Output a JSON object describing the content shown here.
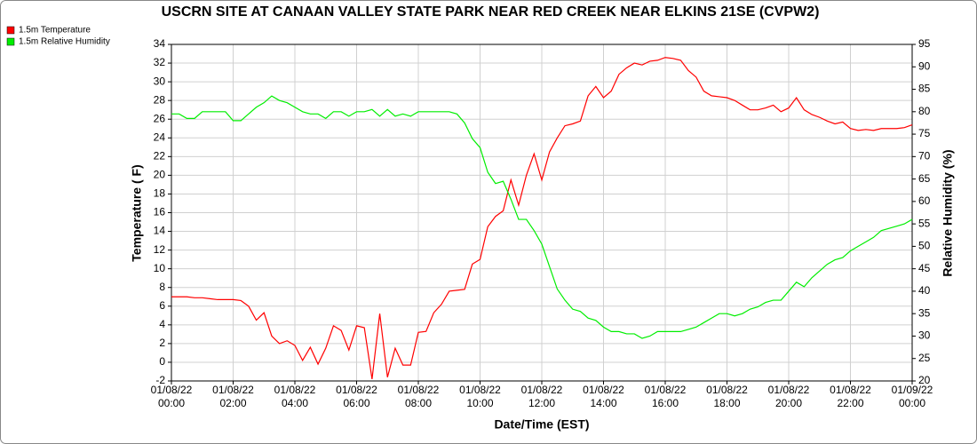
{
  "chart_data": {
    "type": "line",
    "title": "USCRN SITE AT CANAAN VALLEY STATE PARK NEAR RED CREEK NEAR ELKINS 21SE (CVPW2)",
    "x_label": "Date/Time (EST)",
    "y_label": "Temperature ( F)",
    "y2_label": "Relative Humidity (%)",
    "x": [
      "01/08/22 00:00",
      "01/08/22 00:15",
      "01/08/22 00:30",
      "01/08/22 00:45",
      "01/08/22 01:00",
      "01/08/22 01:15",
      "01/08/22 01:30",
      "01/08/22 01:45",
      "01/08/22 02:00",
      "01/08/22 02:15",
      "01/08/22 02:30",
      "01/08/22 02:45",
      "01/08/22 03:00",
      "01/08/22 03:15",
      "01/08/22 03:30",
      "01/08/22 03:45",
      "01/08/22 04:00",
      "01/08/22 04:15",
      "01/08/22 04:30",
      "01/08/22 04:45",
      "01/08/22 05:00",
      "01/08/22 05:15",
      "01/08/22 05:30",
      "01/08/22 05:45",
      "01/08/22 06:00",
      "01/08/22 06:15",
      "01/08/22 06:30",
      "01/08/22 06:45",
      "01/08/22 07:00",
      "01/08/22 07:15",
      "01/08/22 07:30",
      "01/08/22 07:45",
      "01/08/22 08:00",
      "01/08/22 08:15",
      "01/08/22 08:30",
      "01/08/22 08:45",
      "01/08/22 09:00",
      "01/08/22 09:15",
      "01/08/22 09:30",
      "01/08/22 09:45",
      "01/08/22 10:00",
      "01/08/22 10:15",
      "01/08/22 10:30",
      "01/08/22 10:45",
      "01/08/22 11:00",
      "01/08/22 11:15",
      "01/08/22 11:30",
      "01/08/22 11:45",
      "01/08/22 12:00",
      "01/08/22 12:15",
      "01/08/22 12:30",
      "01/08/22 12:45",
      "01/08/22 13:00",
      "01/08/22 13:15",
      "01/08/22 13:30",
      "01/08/22 13:45",
      "01/08/22 14:00",
      "01/08/22 14:15",
      "01/08/22 14:30",
      "01/08/22 14:45",
      "01/08/22 15:00",
      "01/08/22 15:15",
      "01/08/22 15:30",
      "01/08/22 15:45",
      "01/08/22 16:00",
      "01/08/22 16:15",
      "01/08/22 16:30",
      "01/08/22 16:45",
      "01/08/22 17:00",
      "01/08/22 17:15",
      "01/08/22 17:30",
      "01/08/22 17:45",
      "01/08/22 18:00",
      "01/08/22 18:15",
      "01/08/22 18:30",
      "01/08/22 18:45",
      "01/08/22 19:00",
      "01/08/22 19:15",
      "01/08/22 19:30",
      "01/08/22 19:45",
      "01/08/22 20:00",
      "01/08/22 20:15",
      "01/08/22 20:30",
      "01/08/22 20:45",
      "01/08/22 21:00",
      "01/08/22 21:15",
      "01/08/22 21:30",
      "01/08/22 21:45",
      "01/08/22 22:00",
      "01/08/22 22:15",
      "01/08/22 22:30",
      "01/08/22 22:45",
      "01/08/22 23:00",
      "01/08/22 23:15",
      "01/08/22 23:30",
      "01/08/22 23:45",
      "01/09/22 00:00"
    ],
    "series": [
      {
        "name": "1.5m Temperature",
        "color": "#ff0000",
        "values": [
          7.0,
          7.0,
          7.0,
          6.9,
          6.9,
          6.8,
          6.7,
          6.7,
          6.7,
          6.6,
          6.0,
          4.5,
          5.3,
          2.8,
          2.0,
          2.3,
          1.8,
          0.2,
          1.6,
          -0.2,
          1.5,
          3.9,
          3.4,
          1.3,
          3.9,
          3.7,
          -1.8,
          5.2,
          -1.6,
          1.5,
          -0.3,
          -0.3,
          3.2,
          3.3,
          5.3,
          6.2,
          7.6,
          7.7,
          7.8,
          10.5,
          11.0,
          14.5,
          15.6,
          16.2,
          19.5,
          16.8,
          20.0,
          22.3,
          19.5,
          22.5,
          24.0,
          25.3,
          25.5,
          25.8,
          28.5,
          29.5,
          28.3,
          29.0,
          30.8,
          31.5,
          32.0,
          31.8,
          32.2,
          32.3,
          32.6,
          32.5,
          32.3,
          31.2,
          30.5,
          29.0,
          28.5,
          28.4,
          28.3,
          28.0,
          27.5,
          27.0,
          27.0,
          27.2,
          27.5,
          26.8,
          27.2,
          28.3,
          27.0,
          26.5,
          26.2,
          25.8,
          25.5,
          25.7,
          25.0,
          24.8,
          24.9,
          24.8,
          25.0,
          25.0,
          25.0,
          25.1,
          25.4
        ]
      },
      {
        "name": "1.5m Relative Humidity",
        "color": "#00ee00",
        "axis": "y2",
        "values": [
          79.5,
          79.5,
          78.5,
          78.5,
          80,
          80,
          80,
          80,
          78,
          78,
          79.5,
          81,
          82,
          83.5,
          82.5,
          82,
          81,
          80,
          79.5,
          79.5,
          78.5,
          80,
          80,
          79,
          80,
          80,
          80.5,
          79,
          80.5,
          79,
          79.5,
          79,
          80,
          80,
          80,
          80,
          80,
          79.5,
          77.5,
          74,
          72,
          66.5,
          64,
          64.5,
          60.5,
          56,
          56,
          53.5,
          50.5,
          45.5,
          40.5,
          38,
          36,
          35.5,
          34,
          33.5,
          32,
          31,
          31,
          30.5,
          30.5,
          29.5,
          30,
          31,
          31,
          31,
          31,
          31.5,
          32,
          33,
          34,
          35,
          35,
          34.5,
          35,
          36,
          36.5,
          37.5,
          38,
          38,
          40,
          42,
          41,
          43,
          44.5,
          46,
          47,
          47.5,
          49,
          50,
          51,
          52,
          53.5,
          54,
          54.5,
          55,
          56
        ]
      }
    ],
    "xticks": [
      {
        "value": "01/08/22 00:00",
        "label": [
          "01/08/22",
          "00:00"
        ]
      },
      {
        "value": "01/08/22 02:00",
        "label": [
          "01/08/22",
          "02:00"
        ]
      },
      {
        "value": "01/08/22 04:00",
        "label": [
          "01/08/22",
          "04:00"
        ]
      },
      {
        "value": "01/08/22 06:00",
        "label": [
          "01/08/22",
          "06:00"
        ]
      },
      {
        "value": "01/08/22 08:00",
        "label": [
          "01/08/22",
          "08:00"
        ]
      },
      {
        "value": "01/08/22 10:00",
        "label": [
          "01/08/22",
          "10:00"
        ]
      },
      {
        "value": "01/08/22 12:00",
        "label": [
          "01/08/22",
          "12:00"
        ]
      },
      {
        "value": "01/08/22 14:00",
        "label": [
          "01/08/22",
          "14:00"
        ]
      },
      {
        "value": "01/08/22 16:00",
        "label": [
          "01/08/22",
          "16:00"
        ]
      },
      {
        "value": "01/08/22 18:00",
        "label": [
          "01/08/22",
          "18:00"
        ]
      },
      {
        "value": "01/08/22 20:00",
        "label": [
          "01/08/22",
          "20:00"
        ]
      },
      {
        "value": "01/08/22 22:00",
        "label": [
          "01/08/22",
          "22:00"
        ]
      },
      {
        "value": "01/09/22 00:00",
        "label": [
          "01/09/22",
          "00:00"
        ]
      }
    ],
    "ylim": [
      -2,
      34
    ],
    "yticks": [
      -2,
      0,
      2,
      4,
      6,
      8,
      10,
      12,
      14,
      16,
      18,
      20,
      22,
      24,
      26,
      28,
      30,
      32,
      34
    ],
    "y2lim": [
      20,
      95
    ],
    "y2ticks": [
      20,
      25,
      30,
      35,
      40,
      45,
      50,
      55,
      60,
      65,
      70,
      75,
      80,
      85,
      90,
      95
    ],
    "grid": true,
    "legend": "top-left"
  }
}
